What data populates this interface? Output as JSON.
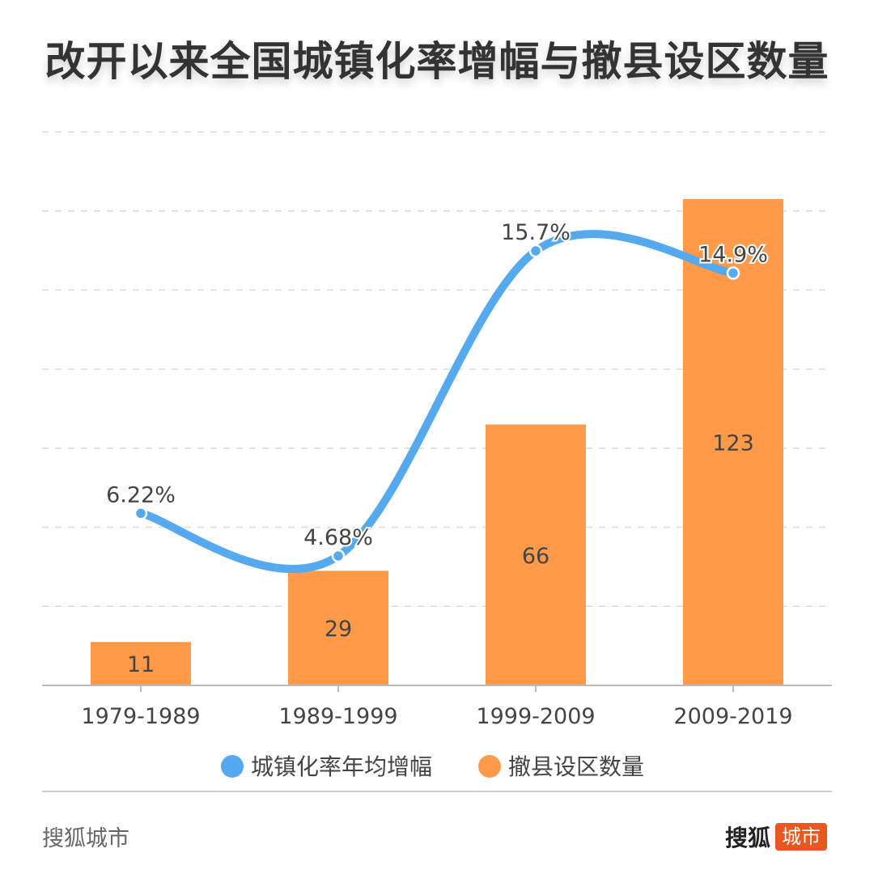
{
  "title": "改开以来全国城镇化率增幅与撤县设区数量",
  "chart_data": {
    "type": "bar",
    "categories": [
      "1979-1989",
      "1989-1999",
      "1999-2009",
      "2009-2019"
    ],
    "bar_series": {
      "name": "撤县设区数量",
      "values": [
        11,
        29,
        66,
        123
      ],
      "color": "#FF9A4A",
      "ylim": [
        0,
        140
      ]
    },
    "line_series": {
      "name": "城镇化率年均增幅",
      "values": [
        6.22,
        4.68,
        15.7,
        14.9
      ],
      "labels": [
        "6.22%",
        "4.68%",
        "15.7%",
        "14.9%"
      ],
      "color": "#55AAEF",
      "ylim": [
        0,
        20
      ]
    },
    "grid": true,
    "legend_position": "bottom"
  },
  "footer": {
    "source": "搜狐城市",
    "logo_text": "搜狐",
    "logo_badge": "城市"
  }
}
